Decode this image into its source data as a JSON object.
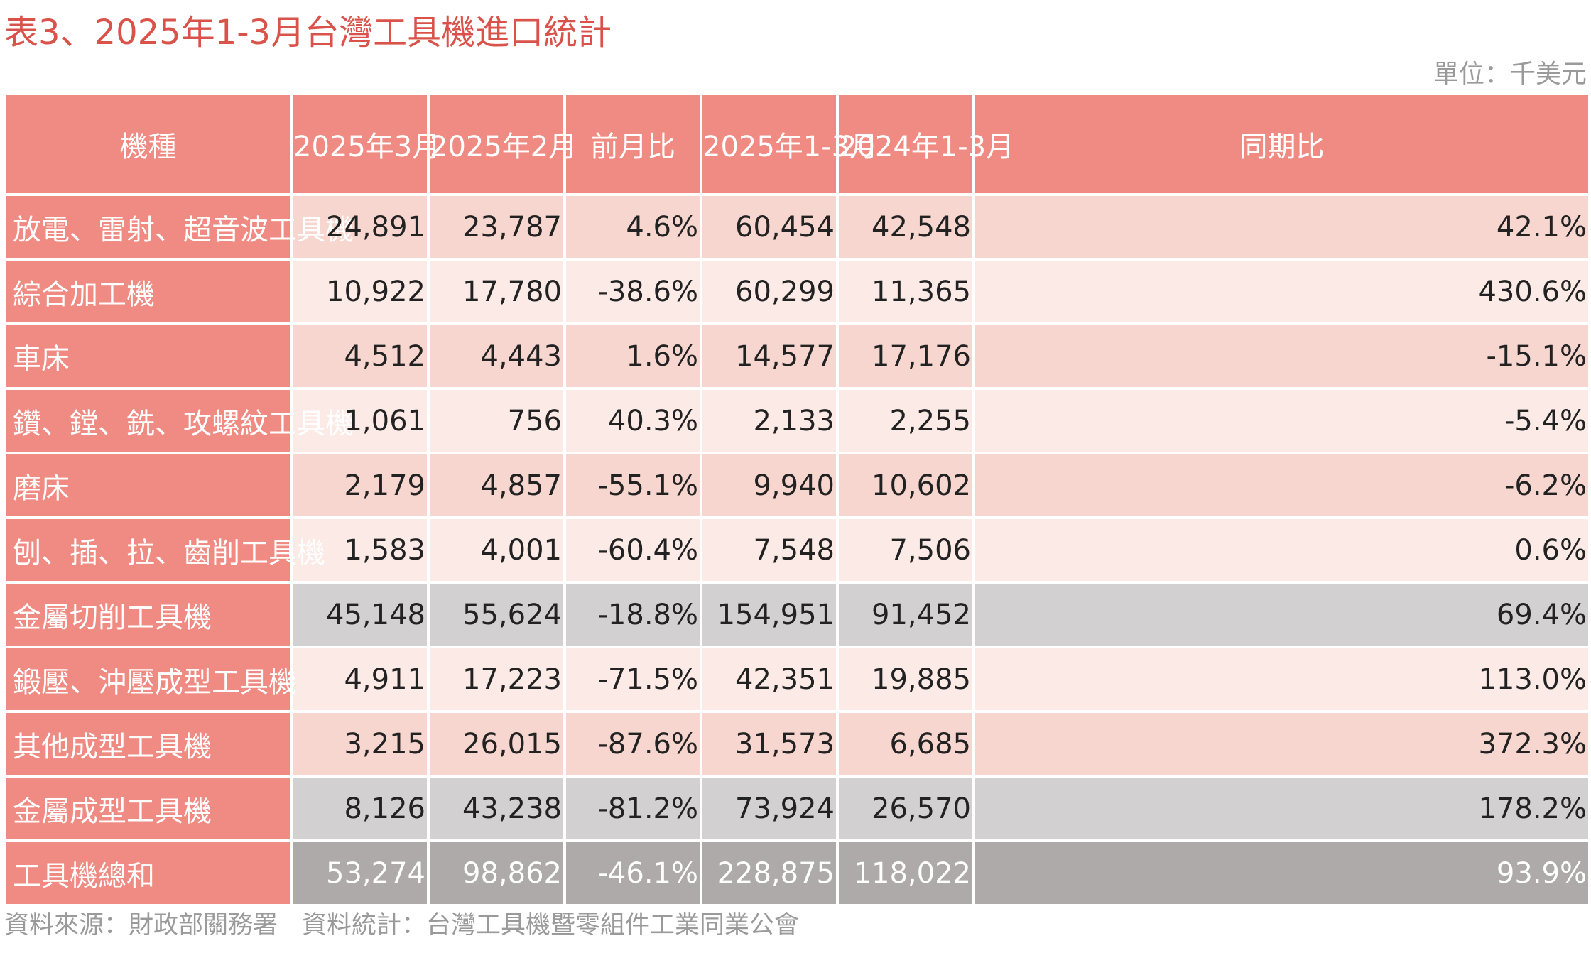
{
  "title": "表3、2025年1-3月台灣工具機進口統計",
  "unit": "單位：千美元",
  "columns": [
    "機種",
    "2025年3月",
    "2025年2月",
    "前月比",
    "2025年1-3月",
    "2024年1-3月",
    "同期比"
  ],
  "rows": [
    {
      "name": "放電、雷射、超音波工具機",
      "type": "a",
      "values": [
        "24,891",
        "23,787",
        "4.6%",
        "60,454",
        "42,548",
        "42.1%"
      ]
    },
    {
      "name": "綜合加工機",
      "type": "b",
      "values": [
        "10,922",
        "17,780",
        "-38.6%",
        "60,299",
        "11,365",
        "430.6%"
      ]
    },
    {
      "name": "車床",
      "type": "a",
      "values": [
        "4,512",
        "4,443",
        "1.6%",
        "14,577",
        "17,176",
        "-15.1%"
      ]
    },
    {
      "name": "鑽、鏜、銑、攻螺紋工具機",
      "type": "b",
      "values": [
        "1,061",
        "756",
        "40.3%",
        "2,133",
        "2,255",
        "-5.4%"
      ]
    },
    {
      "name": "磨床",
      "type": "a",
      "values": [
        "2,179",
        "4,857",
        "-55.1%",
        "9,940",
        "10,602",
        "-6.2%"
      ]
    },
    {
      "name": "刨、插、拉、齒削工具機",
      "type": "b",
      "values": [
        "1,583",
        "4,001",
        "-60.4%",
        "7,548",
        "7,506",
        "0.6%"
      ]
    },
    {
      "name": "金屬切削工具機",
      "type": "sub",
      "values": [
        "45,148",
        "55,624",
        "-18.8%",
        "154,951",
        "91,452",
        "69.4%"
      ]
    },
    {
      "name": "鍛壓、沖壓成型工具機",
      "type": "b",
      "values": [
        "4,911",
        "17,223",
        "-71.5%",
        "42,351",
        "19,885",
        "113.0%"
      ]
    },
    {
      "name": "其他成型工具機",
      "type": "a",
      "values": [
        "3,215",
        "26,015",
        "-87.6%",
        "31,573",
        "6,685",
        "372.3%"
      ]
    },
    {
      "name": "金屬成型工具機",
      "type": "sub",
      "values": [
        "8,126",
        "43,238",
        "-81.2%",
        "73,924",
        "26,570",
        "178.2%"
      ]
    },
    {
      "name": "工具機總和",
      "type": "total",
      "values": [
        "53,274",
        "98,862",
        "-46.1%",
        "228,875",
        "118,022",
        "93.9%"
      ]
    }
  ],
  "source": {
    "data_source": "資料來源：財政部關務署",
    "statistics": "資料統計：台灣工具機暨零組件工業同業公會"
  },
  "colors": {
    "title": "#d9534a",
    "header": "#ef8b82",
    "row_dark": "#f7d6cf",
    "row_light": "#fbeae6",
    "subtotal_label": "#9a9796",
    "subtotal_value": "#d2d0d0",
    "total_label": "#7b7978",
    "total_value": "#aeaaa9"
  }
}
